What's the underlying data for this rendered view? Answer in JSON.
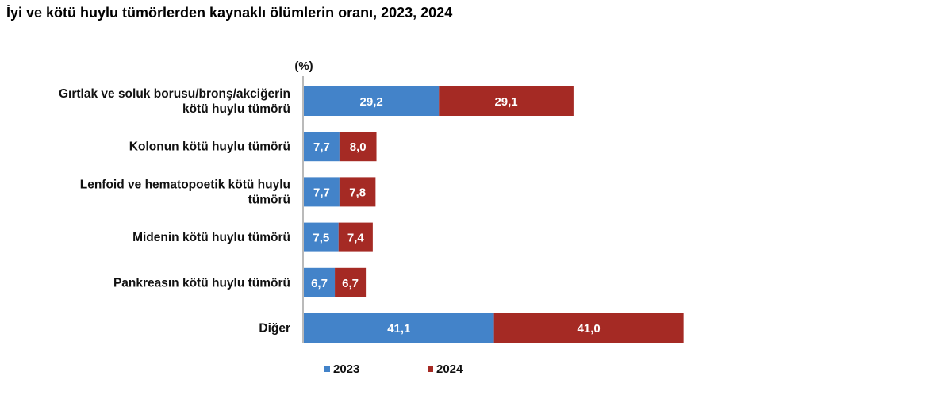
{
  "title": "İyi ve kötü huylu tümörlerden kaynaklı ölümlerin oranı, 2023, 2024",
  "chart_data": {
    "type": "bar",
    "orientation": "horizontal",
    "stacked": true,
    "title": "İyi ve kötü huylu tümörlerden kaynaklı ölümlerin oranı, 2023, 2024",
    "unit_label": "(%)",
    "categories": [
      [
        "Gırtlak ve soluk borusu/bronş/akciğerin",
        "kötü huylu tümörü"
      ],
      [
        "Kolonun kötü huylu tümörü"
      ],
      [
        "Lenfoid ve hematopoetik kötü huylu",
        "tümörü"
      ],
      [
        "Midenin kötü huylu tümörü"
      ],
      [
        "Pankreasın kötü huylu tümörü"
      ],
      [
        "Diğer"
      ]
    ],
    "series": [
      {
        "name": "2023",
        "color": "#4383C9",
        "values": [
          29.2,
          7.7,
          7.7,
          7.5,
          6.7,
          41.1
        ],
        "labels": [
          "29,2",
          "7,7",
          "7,7",
          "7,5",
          "6,7",
          "41,1"
        ]
      },
      {
        "name": "2024",
        "color": "#A52A24",
        "values": [
          29.1,
          8.0,
          7.8,
          7.4,
          6.7,
          41.0
        ],
        "labels": [
          "29,1",
          "8,0",
          "7,8",
          "7,4",
          "6,7",
          "41,0"
        ]
      }
    ],
    "legend_position": "bottom",
    "grid": false
  }
}
